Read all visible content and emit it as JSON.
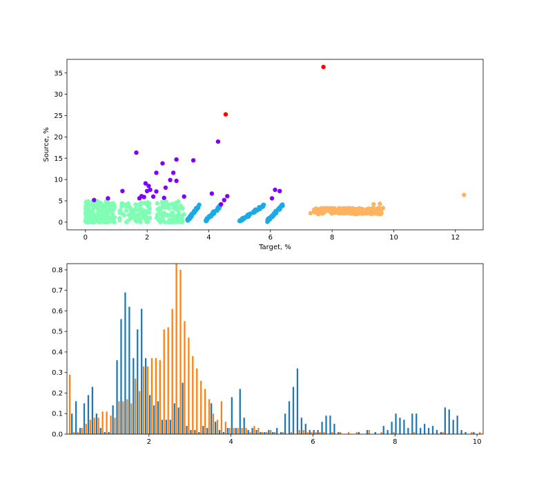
{
  "chart_data": [
    {
      "type": "scatter",
      "xlabel": "Target, %",
      "ylabel": "Source, %",
      "xlim": [
        -0.6,
        12.9
      ],
      "ylim": [
        -1.8,
        38.2
      ],
      "xticks": [
        0,
        2,
        4,
        6,
        8,
        10,
        12
      ],
      "yticks": [
        0,
        5,
        10,
        15,
        20,
        25,
        30,
        35
      ],
      "grid": false,
      "series": [
        {
          "color": "#7f00ff",
          "points": [
            [
              0.28,
              5.2
            ],
            [
              0.73,
              5.6
            ],
            [
              1.2,
              7.3
            ],
            [
              1.65,
              16.3
            ],
            [
              1.75,
              5.6
            ],
            [
              1.82,
              6.1
            ],
            [
              1.9,
              5.9
            ],
            [
              1.95,
              9.1
            ],
            [
              2.0,
              7.3
            ],
            [
              2.05,
              8.5
            ],
            [
              2.1,
              7.6
            ],
            [
              2.2,
              6.0
            ],
            [
              2.3,
              7.2
            ],
            [
              2.3,
              11.6
            ],
            [
              2.5,
              13.8
            ],
            [
              2.55,
              5.7
            ],
            [
              2.6,
              8.1
            ],
            [
              2.75,
              9.9
            ],
            [
              2.85,
              11.6
            ],
            [
              2.95,
              14.7
            ],
            [
              2.95,
              9.7
            ],
            [
              3.2,
              6.0
            ],
            [
              3.5,
              14.5
            ],
            [
              4.1,
              6.7
            ],
            [
              4.3,
              18.9
            ],
            [
              4.4,
              4.2
            ],
            [
              4.5,
              5.2
            ],
            [
              4.6,
              6.1
            ],
            [
              6.05,
              5.6
            ],
            [
              6.15,
              7.6
            ],
            [
              6.3,
              7.3
            ]
          ]
        },
        {
          "color": "#ff0000",
          "points": [
            [
              4.55,
              25.3
            ],
            [
              7.72,
              36.4
            ]
          ]
        },
        {
          "color": "#ffb360",
          "points": [
            [
              12.28,
              6.4
            ],
            [
              9.55,
              4.3
            ],
            [
              9.65,
              3.3
            ],
            [
              9.35,
              4.2
            ],
            [
              7.3,
              2.1
            ],
            [
              7.55,
              1.9
            ]
          ]
        }
      ],
      "clusters": [
        {
          "color": "#80ffb4",
          "x_range": [
            0.0,
            3.3
          ],
          "y_range": [
            0.0,
            4.9
          ],
          "count": 420
        },
        {
          "color": "#1aabe6",
          "x_range": [
            3.3,
            6.5
          ],
          "y_range": [
            0.0,
            4.0
          ],
          "count": 150
        },
        {
          "color": "#ffb360",
          "x_range": [
            7.4,
            9.6
          ],
          "y_range": [
            1.6,
            3.6
          ],
          "count": 260
        }
      ]
    },
    {
      "type": "bar",
      "xlim": [
        0.0,
        10.15
      ],
      "ylim": [
        0.0,
        0.83
      ],
      "xticks": [
        2,
        4,
        6,
        8,
        10
      ],
      "yticks": [
        0.0,
        0.1,
        0.2,
        0.3,
        0.4,
        0.5,
        0.6,
        0.7,
        0.8
      ],
      "grid": false,
      "bin_width": 0.1,
      "series": [
        {
          "color": "#1f77b4",
          "values": [
            [
              0.15,
              0.1
            ],
            [
              0.25,
              0.16
            ],
            [
              0.35,
              0.03
            ],
            [
              0.45,
              0.15
            ],
            [
              0.55,
              0.19
            ],
            [
              0.65,
              0.23
            ],
            [
              0.75,
              0.1
            ],
            [
              0.85,
              0.03
            ],
            [
              0.95,
              0.01
            ],
            [
              1.05,
              0.01
            ],
            [
              1.15,
              0.14
            ],
            [
              1.25,
              0.36
            ],
            [
              1.35,
              0.56
            ],
            [
              1.45,
              0.69
            ],
            [
              1.55,
              0.62
            ],
            [
              1.65,
              0.37
            ],
            [
              1.75,
              0.51
            ],
            [
              1.85,
              0.61
            ],
            [
              1.95,
              0.37
            ],
            [
              2.05,
              0.19
            ],
            [
              2.15,
              0.14
            ],
            [
              2.25,
              0.16
            ],
            [
              2.35,
              0.07
            ],
            [
              2.45,
              0.07
            ],
            [
              2.55,
              0.07
            ],
            [
              2.65,
              0.15
            ],
            [
              2.75,
              0.13
            ],
            [
              2.85,
              0.25
            ],
            [
              2.95,
              0.04
            ],
            [
              3.05,
              0.02
            ],
            [
              3.15,
              0.02
            ],
            [
              3.25,
              0.01
            ],
            [
              3.35,
              0.04
            ],
            [
              3.45,
              0.03
            ],
            [
              3.55,
              0.15
            ],
            [
              3.65,
              0.06
            ],
            [
              3.75,
              0.02
            ],
            [
              3.85,
              0.01
            ],
            [
              3.95,
              0.03
            ],
            [
              4.05,
              0.18
            ],
            [
              4.15,
              0.03
            ],
            [
              4.25,
              0.22
            ],
            [
              4.35,
              0.08
            ],
            [
              4.45,
              0.02
            ],
            [
              4.55,
              0.03
            ],
            [
              4.65,
              0.02
            ],
            [
              4.75,
              0.01
            ],
            [
              4.85,
              0.01
            ],
            [
              4.95,
              0.02
            ],
            [
              5.05,
              0.01
            ],
            [
              5.15,
              0.03
            ],
            [
              5.25,
              0.01
            ],
            [
              5.35,
              0.1
            ],
            [
              5.45,
              0.16
            ],
            [
              5.55,
              0.23
            ],
            [
              5.65,
              0.32
            ],
            [
              5.75,
              0.08
            ],
            [
              5.85,
              0.05
            ],
            [
              5.95,
              0.02
            ],
            [
              6.05,
              0.02
            ],
            [
              6.15,
              0.02
            ],
            [
              6.25,
              0.06
            ],
            [
              6.35,
              0.09
            ],
            [
              6.45,
              0.09
            ],
            [
              6.55,
              0.05
            ],
            [
              6.65,
              0.01
            ],
            [
              7.15,
              0.01
            ],
            [
              7.35,
              0.02
            ],
            [
              7.55,
              0.01
            ],
            [
              7.75,
              0.04
            ],
            [
              7.85,
              0.02
            ],
            [
              7.95,
              0.06
            ],
            [
              8.05,
              0.1
            ],
            [
              8.15,
              0.08
            ],
            [
              8.25,
              0.07
            ],
            [
              8.35,
              0.03
            ],
            [
              8.45,
              0.1
            ],
            [
              8.55,
              0.1
            ],
            [
              8.65,
              0.03
            ],
            [
              8.75,
              0.05
            ],
            [
              8.85,
              0.03
            ],
            [
              8.95,
              0.04
            ],
            [
              9.05,
              0.02
            ],
            [
              9.15,
              0.01
            ],
            [
              9.25,
              0.13
            ],
            [
              9.35,
              0.12
            ],
            [
              9.45,
              0.07
            ],
            [
              9.55,
              0.09
            ],
            [
              9.65,
              0.02
            ],
            [
              9.75,
              0.01
            ],
            [
              9.95,
              0.01
            ]
          ]
        },
        {
          "color": "#ff7f0e",
          "values": [
            [
              0.05,
              0.29
            ],
            [
              0.15,
              0.01
            ],
            [
              0.25,
              0.01
            ],
            [
              0.35,
              0.03
            ],
            [
              0.45,
              0.05
            ],
            [
              0.55,
              0.07
            ],
            [
              0.65,
              0.08
            ],
            [
              0.75,
              0.08
            ],
            [
              0.85,
              0.11
            ],
            [
              0.95,
              0.11
            ],
            [
              1.05,
              0.09
            ],
            [
              1.15,
              0.08
            ],
            [
              1.25,
              0.16
            ],
            [
              1.35,
              0.16
            ],
            [
              1.45,
              0.17
            ],
            [
              1.55,
              0.15
            ],
            [
              1.65,
              0.27
            ],
            [
              1.75,
              0.21
            ],
            [
              1.85,
              0.33
            ],
            [
              1.95,
              0.33
            ],
            [
              2.05,
              0.37
            ],
            [
              2.15,
              0.37
            ],
            [
              2.25,
              0.36
            ],
            [
              2.35,
              0.51
            ],
            [
              2.45,
              0.52
            ],
            [
              2.55,
              0.61
            ],
            [
              2.65,
              0.83
            ],
            [
              2.75,
              0.8
            ],
            [
              2.85,
              0.55
            ],
            [
              2.95,
              0.47
            ],
            [
              3.05,
              0.38
            ],
            [
              3.15,
              0.32
            ],
            [
              3.25,
              0.26
            ],
            [
              3.35,
              0.22
            ],
            [
              3.45,
              0.17
            ],
            [
              3.55,
              0.1
            ],
            [
              3.65,
              0.07
            ],
            [
              3.75,
              0.16
            ],
            [
              3.85,
              0.06
            ],
            [
              3.95,
              0.03
            ],
            [
              4.05,
              0.03
            ],
            [
              4.15,
              0.03
            ],
            [
              4.25,
              0.03
            ],
            [
              4.35,
              0.03
            ],
            [
              4.45,
              0.01
            ],
            [
              4.55,
              0.04
            ],
            [
              4.65,
              0.03
            ],
            [
              4.75,
              0.01
            ],
            [
              4.85,
              0.01
            ],
            [
              4.95,
              0.02
            ],
            [
              5.05,
              0.01
            ],
            [
              5.25,
              0.01
            ],
            [
              5.45,
              0.01
            ],
            [
              5.65,
              0.02
            ],
            [
              5.75,
              0.02
            ],
            [
              5.85,
              0.01
            ],
            [
              5.95,
              0.01
            ],
            [
              6.05,
              0.01
            ],
            [
              6.15,
              0.01
            ],
            [
              6.25,
              0.01
            ],
            [
              6.45,
              0.01
            ],
            [
              6.65,
              0.01
            ],
            [
              6.85,
              0.01
            ],
            [
              7.05,
              0.01
            ],
            [
              7.35,
              0.02
            ],
            [
              7.65,
              0.01
            ],
            [
              7.95,
              0.01
            ],
            [
              8.45,
              0.01
            ],
            [
              9.15,
              0.01
            ],
            [
              9.85,
              0.01
            ],
            [
              10.05,
              0.01
            ]
          ]
        }
      ]
    }
  ]
}
